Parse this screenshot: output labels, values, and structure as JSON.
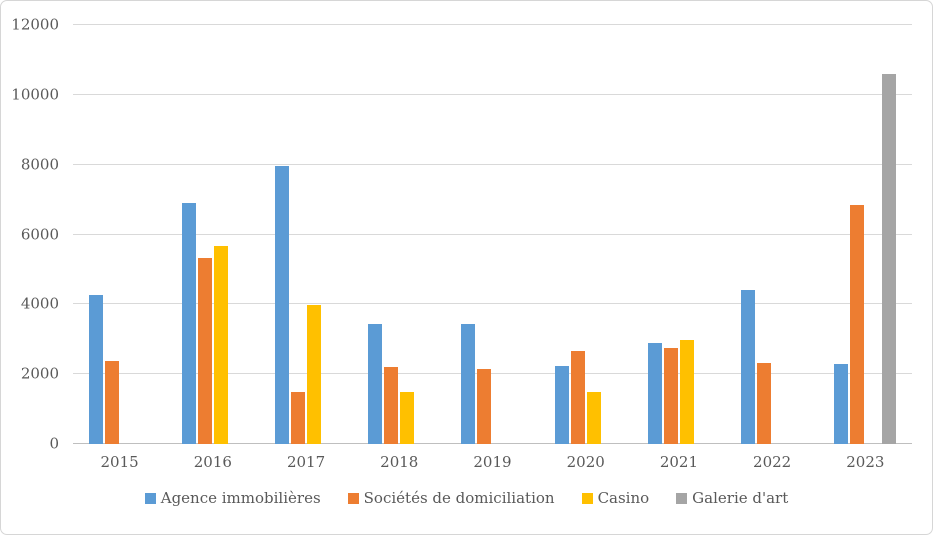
{
  "chart_data": {
    "type": "bar",
    "title": "",
    "xlabel": "",
    "ylabel": "",
    "categories": [
      "2015",
      "2016",
      "2017",
      "2018",
      "2019",
      "2020",
      "2021",
      "2022",
      "2023"
    ],
    "series": [
      {
        "name": "Agence immobilières",
        "color": "#5B9BD5",
        "values": [
          4260,
          6900,
          7960,
          3450,
          3450,
          2240,
          2890,
          4400,
          2290
        ]
      },
      {
        "name": "Sociétés de domiciliation",
        "color": "#ED7D31",
        "values": [
          2370,
          5330,
          1490,
          2220,
          2140,
          2670,
          2760,
          2320,
          6840
        ]
      },
      {
        "name": "Casino",
        "color": "#FFC000",
        "values": [
          0,
          5670,
          3990,
          1480,
          0,
          1500,
          2980,
          0,
          0
        ]
      },
      {
        "name": "Galerie d'art",
        "color": "#A5A5A5",
        "values": [
          0,
          0,
          0,
          0,
          0,
          0,
          0,
          0,
          10590
        ]
      }
    ],
    "ylim": [
      0,
      12000
    ],
    "yticks": [
      0,
      2000,
      4000,
      6000,
      8000,
      10000,
      12000
    ],
    "grid": true,
    "legend_position": "bottom",
    "colors": {
      "text": "#595959",
      "gridline": "#D9D9D9",
      "axis_line": "#BFBFBF",
      "frame_border": "#D6D6D6",
      "background": "#FFFFFF"
    }
  }
}
